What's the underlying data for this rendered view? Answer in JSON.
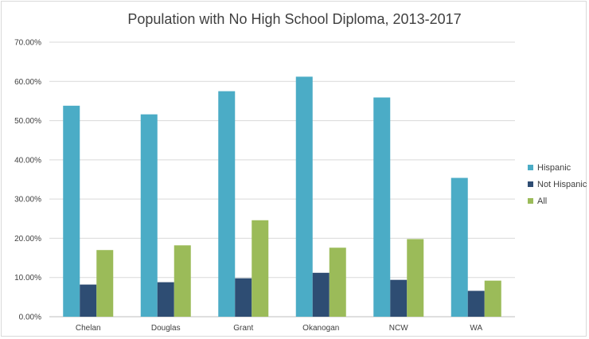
{
  "chart_data": {
    "type": "bar",
    "title": "Population with No High School Diploma, 2013-2017",
    "xlabel": "",
    "ylabel": "",
    "categories": [
      "Chelan",
      "Douglas",
      "Grant",
      "Okanogan",
      "NCW",
      "WA"
    ],
    "series": [
      {
        "name": "Hispanic",
        "color": "#4bacc6",
        "values": [
          53.8,
          51.6,
          57.5,
          61.2,
          55.9,
          35.4
        ]
      },
      {
        "name": "Not Hispanic",
        "color": "#2e4d73",
        "values": [
          8.2,
          8.8,
          9.8,
          11.2,
          9.4,
          6.6
        ]
      },
      {
        "name": "All",
        "color": "#9bbb59",
        "values": [
          17.0,
          18.2,
          24.6,
          17.6,
          19.8,
          9.2
        ]
      }
    ],
    "yticks": [
      "0.00%",
      "10.00%",
      "20.00%",
      "30.00%",
      "40.00%",
      "50.00%",
      "60.00%",
      "70.00%"
    ],
    "ylim": [
      0,
      70
    ],
    "grid": true,
    "legend": "right"
  }
}
